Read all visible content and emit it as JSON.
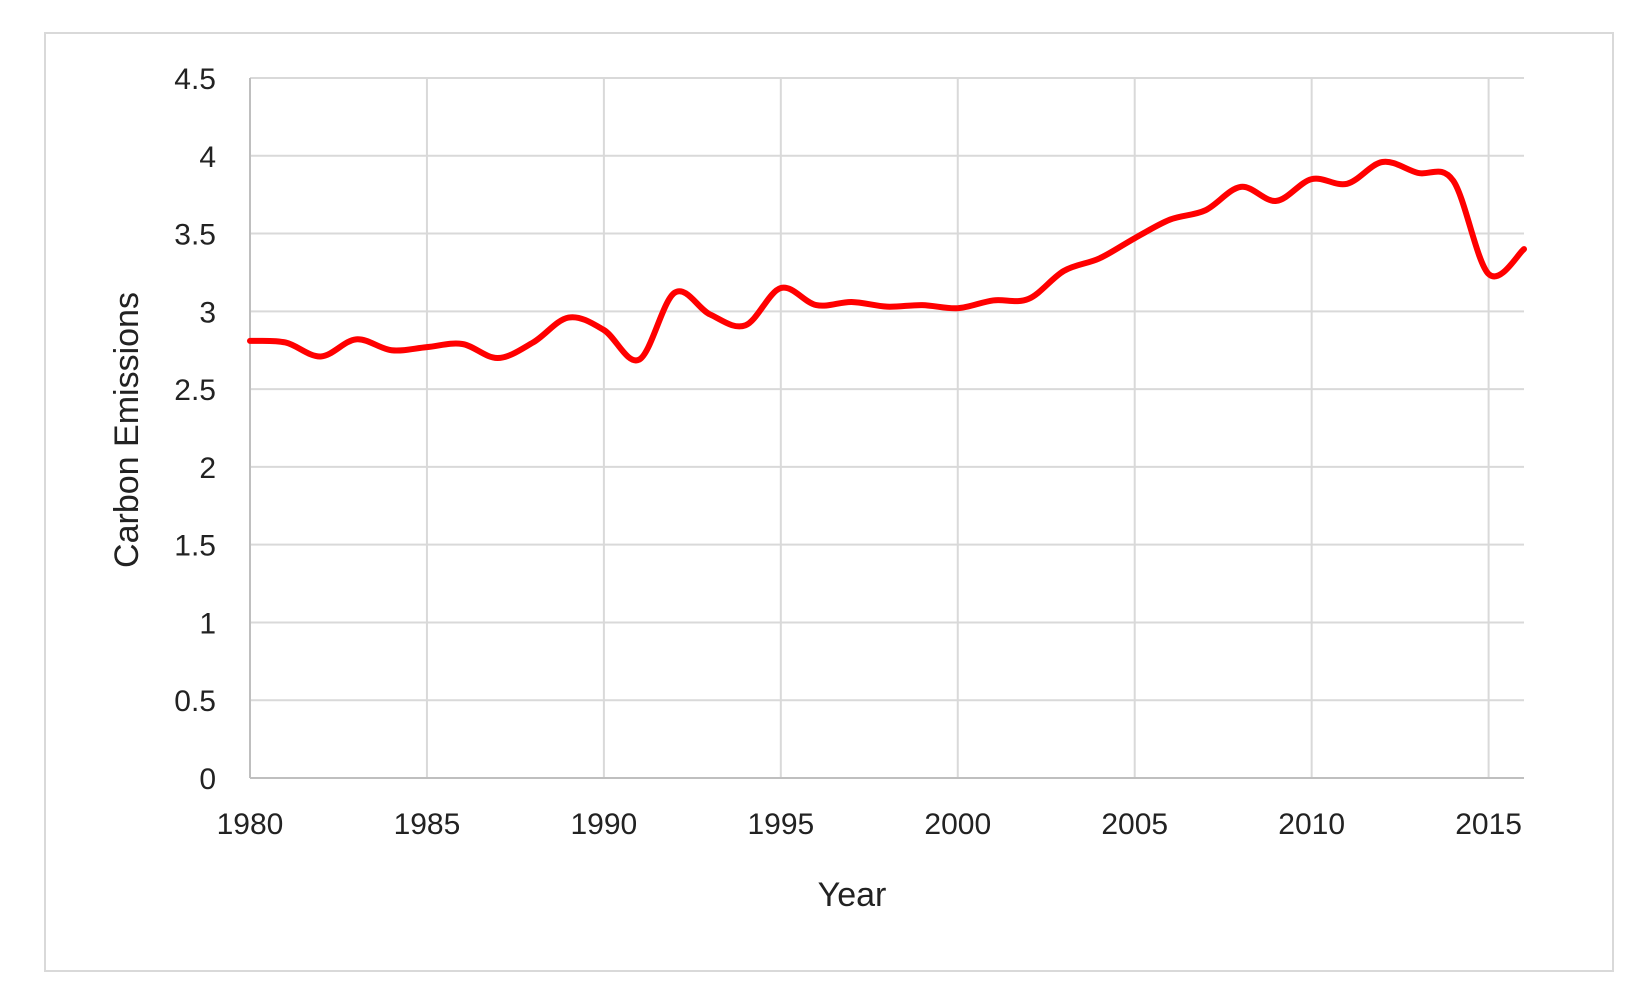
{
  "chart_data": {
    "type": "line",
    "title": "",
    "xlabel": "Year",
    "ylabel": "Carbon Emissions",
    "xlim": [
      1980,
      2016
    ],
    "ylim": [
      0,
      4.5
    ],
    "x_ticks": [
      "1980",
      "1985",
      "1990",
      "1995",
      "2000",
      "2005",
      "2010",
      "2015"
    ],
    "y_ticks": [
      "0",
      "0.5",
      "1",
      "1.5",
      "2",
      "2.5",
      "3",
      "3.5",
      "4",
      "4.5"
    ],
    "grid": true,
    "legend": "none",
    "line_color": "#ff0000",
    "series": [
      {
        "x": [
          1980,
          1981,
          1982,
          1983,
          1984,
          1985,
          1986,
          1987,
          1988,
          1989,
          1990,
          1991,
          1992,
          1993,
          1994,
          1995,
          1996,
          1997,
          1998,
          1999,
          2000,
          2001,
          2002,
          2003,
          2004,
          2005,
          2006,
          2007,
          2008,
          2009,
          2010,
          2011,
          2012,
          2013,
          2014,
          2015,
          2016
        ],
        "y": [
          2.81,
          2.8,
          2.71,
          2.82,
          2.75,
          2.77,
          2.79,
          2.7,
          2.8,
          2.96,
          2.88,
          2.69,
          3.12,
          2.98,
          2.91,
          3.15,
          3.04,
          3.06,
          3.03,
          3.04,
          3.02,
          3.07,
          3.08,
          3.26,
          3.34,
          3.47,
          3.59,
          3.65,
          3.8,
          3.71,
          3.85,
          3.82,
          3.96,
          3.89,
          3.84,
          3.24,
          3.4
        ]
      }
    ]
  }
}
